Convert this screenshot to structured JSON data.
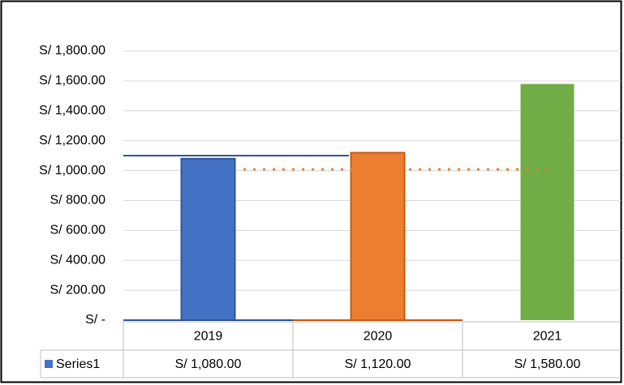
{
  "chart_data": {
    "type": "bar",
    "categories": [
      "2019",
      "2020",
      "2021"
    ],
    "series": [
      {
        "name": "Series1",
        "colors": [
          "#4472c4",
          "#ed7d31",
          "#70ad47"
        ],
        "values": [
          1080,
          1120,
          1580
        ],
        "value_labels": [
          "S/ 1,080.00",
          "S/ 1,120.00",
          "S/ 1,580.00"
        ]
      }
    ],
    "ylim": [
      0,
      1800
    ],
    "yticks": [
      {
        "value": 0,
        "label": "S/ -"
      },
      {
        "value": 200,
        "label": "S/ 200.00"
      },
      {
        "value": 400,
        "label": "S/ 400.00"
      },
      {
        "value": 600,
        "label": "S/ 600.00"
      },
      {
        "value": 800,
        "label": "S/ 800.00"
      },
      {
        "value": 1000,
        "label": "S/ 1,000.00"
      },
      {
        "value": 1200,
        "label": "S/ 1,200.00"
      },
      {
        "value": 1400,
        "label": "S/ 1,400.00"
      },
      {
        "value": 1600,
        "label": "S/ 1,600.00"
      },
      {
        "value": 1800,
        "label": "S/ 1,800.00"
      }
    ],
    "grid": true,
    "data_table": true
  }
}
